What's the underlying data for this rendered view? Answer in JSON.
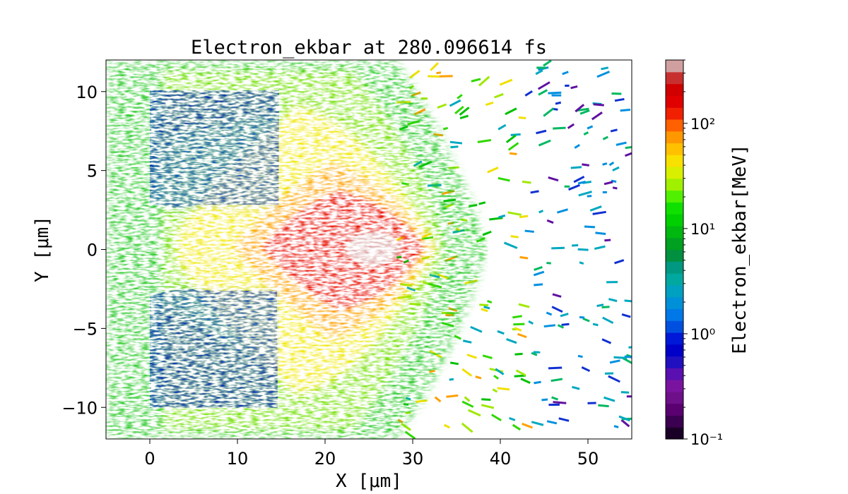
{
  "chart_data": {
    "type": "heatmap",
    "title": "Electron_ekbar at 280.096614 fs",
    "xlabel": "X [μm]",
    "ylabel": "Y [μm]",
    "xlim": [
      -5,
      55
    ],
    "ylim": [
      -12,
      12
    ],
    "x_ticks": [
      0,
      10,
      20,
      30,
      40,
      50
    ],
    "y_ticks": [
      -10,
      -5,
      0,
      5,
      10
    ],
    "x_tick_labels": [
      "0",
      "10",
      "20",
      "30",
      "40",
      "50"
    ],
    "y_tick_labels": [
      "−10",
      "−5",
      "0",
      "5",
      "10"
    ],
    "colorbar": {
      "label": "Electron_ekbar[MeV]",
      "scale": "log",
      "range": [
        0.1,
        400
      ],
      "ticks": [
        0.1,
        1,
        10,
        100
      ],
      "tick_labels": [
        "10⁻¹",
        "10⁰",
        "10¹",
        "10²"
      ],
      "colors": [
        "#1a0026",
        "#3b0050",
        "#5a0070",
        "#6e1089",
        "#7a14a0",
        "#5a10b0",
        "#2010c0",
        "#0000c8",
        "#0018d8",
        "#0050e0",
        "#0078e8",
        "#0090d8",
        "#00a0c0",
        "#00a8a0",
        "#009880",
        "#009040",
        "#00a020",
        "#00b810",
        "#00d000",
        "#10e000",
        "#50f000",
        "#a0f000",
        "#d8f000",
        "#f8e000",
        "#ffc000",
        "#ff9800",
        "#ff6000",
        "#f02000",
        "#e00000",
        "#d00000",
        "#c83030",
        "#d0a0a0"
      ]
    },
    "regions": [
      {
        "name": "upper target block",
        "x": [
          0,
          15
        ],
        "y": [
          3,
          10
        ],
        "value_mev": 0.8
      },
      {
        "name": "lower target block",
        "x": [
          0,
          15
        ],
        "y": [
          -10,
          -3
        ],
        "value_mev": 0.8
      },
      {
        "name": "hot core",
        "x": [
          20,
          32
        ],
        "y": [
          -3,
          3
        ],
        "value_mev": 200
      }
    ],
    "grid": false
  }
}
